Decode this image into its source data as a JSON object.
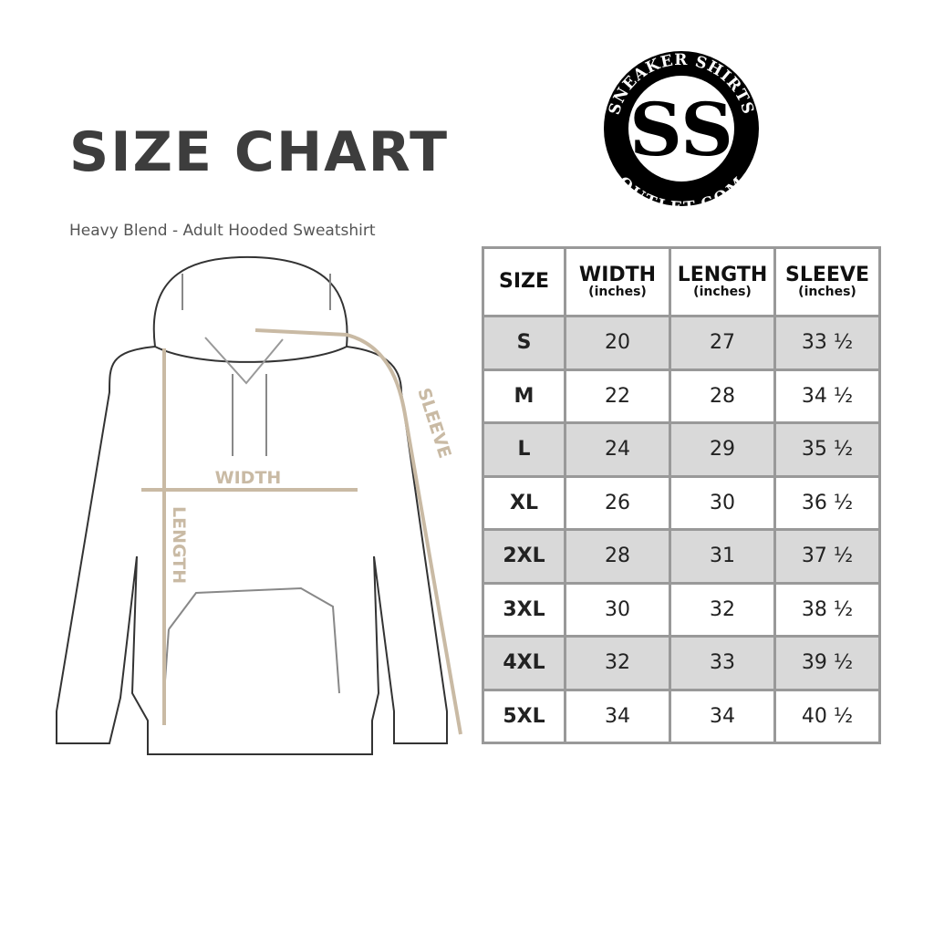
{
  "title": "SIZE CHART",
  "subtitle": "Heavy Blend - Adult Hooded Sweatshirt",
  "logo": {
    "text_top": "SNEAKER SHIRTS",
    "text_bottom": "OUTLET.COM",
    "monogram": "SS"
  },
  "diagram": {
    "width_label": "WIDTH",
    "length_label": "LENGTH",
    "sleeve_label": "SLEEVE",
    "accent_color": "#c9baa4"
  },
  "table": {
    "headers": [
      {
        "label": "SIZE",
        "unit": ""
      },
      {
        "label": "WIDTH",
        "unit": "(inches)"
      },
      {
        "label": "LENGTH",
        "unit": "(inches)"
      },
      {
        "label": "SLEEVE",
        "unit": "(inches)"
      }
    ],
    "rows": [
      [
        "S",
        "20",
        "27",
        "33 ½"
      ],
      [
        "M",
        "22",
        "28",
        "34 ½"
      ],
      [
        "L",
        "24",
        "29",
        "35 ½"
      ],
      [
        "XL",
        "26",
        "30",
        "36 ½"
      ],
      [
        "2XL",
        "28",
        "31",
        "37 ½"
      ],
      [
        "3XL",
        "30",
        "32",
        "38 ½"
      ],
      [
        "4XL",
        "32",
        "33",
        "39 ½"
      ],
      [
        "5XL",
        "34",
        "34",
        "40 ½"
      ]
    ]
  }
}
